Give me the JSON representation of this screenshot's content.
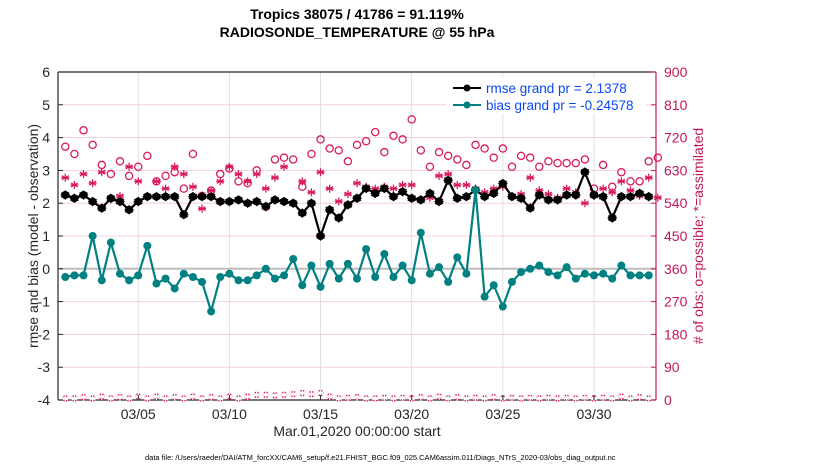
{
  "chart_data": {
    "type": "line",
    "title": [
      "Tropics 38075 / 41786 = 91.119%",
      "RADIOSONDE_TEMPERATURE @ 55 hPa"
    ],
    "xlabel": "Mar.01,2020 00:00:00 start",
    "ylabel": "rmse and bias (model - observation)",
    "y2label": "# of obs: o=possible; *=assimilated",
    "xlim_days": [
      -0.4,
      32.4
    ],
    "ylim": [
      -4,
      6
    ],
    "y2lim": [
      0,
      900
    ],
    "grid": true,
    "legend_position": "top-right",
    "xticks": [
      {
        "day": 4,
        "label": "03/05"
      },
      {
        "day": 9,
        "label": "03/10"
      },
      {
        "day": 14,
        "label": "03/15"
      },
      {
        "day": 19,
        "label": "03/20"
      },
      {
        "day": 24,
        "label": "03/25"
      },
      {
        "day": 29,
        "label": "03/30"
      }
    ],
    "yticks": [
      -4,
      -3,
      -2,
      -1,
      0,
      1,
      2,
      3,
      4,
      5,
      6
    ],
    "y2ticks": [
      0,
      90,
      180,
      270,
      360,
      450,
      540,
      630,
      720,
      810,
      900
    ],
    "x_start_day": -0.5,
    "x_step_days": 0.5,
    "series": [
      {
        "name": "rmse grand pr = 2.1378",
        "color": "#000000",
        "axis": "left",
        "marker": "filled-circle",
        "values": [
          2.25,
          2.25,
          2.15,
          2.25,
          2.05,
          1.85,
          2.15,
          2.05,
          1.8,
          2.05,
          2.2,
          2.2,
          2.2,
          2.2,
          1.65,
          2.2,
          2.2,
          2.2,
          2.05,
          2.05,
          2.1,
          2.0,
          2.05,
          1.9,
          2.1,
          2.05,
          2.0,
          1.7,
          2.0,
          1.0,
          1.8,
          1.55,
          1.95,
          2.15,
          2.45,
          2.3,
          2.45,
          2.2,
          2.35,
          2.15,
          2.1,
          2.3,
          2.05,
          2.7,
          2.15,
          2.2,
          2.4,
          2.2,
          2.3,
          2.6,
          2.2,
          2.15,
          1.85,
          2.25,
          2.1,
          2.1,
          2.25,
          2.25,
          2.95,
          2.25,
          2.2,
          1.55,
          2.2,
          2.2,
          2.3,
          2.2,
          2.05
        ]
      },
      {
        "name": "bias grand pr = -0.24578",
        "color": "#008080",
        "axis": "left",
        "marker": "filled-circle",
        "values": [
          -0.25,
          -0.25,
          -0.2,
          -0.2,
          1.0,
          -0.35,
          0.8,
          -0.15,
          -0.35,
          -0.2,
          0.7,
          -0.45,
          -0.3,
          -0.6,
          -0.15,
          -0.25,
          -0.4,
          -1.3,
          -0.25,
          -0.15,
          -0.35,
          -0.35,
          -0.2,
          0.0,
          -0.3,
          -0.2,
          0.3,
          -0.5,
          0.1,
          -0.55,
          0.15,
          -0.3,
          0.15,
          -0.3,
          0.6,
          -0.25,
          0.45,
          -0.25,
          0.1,
          -0.35,
          1.1,
          -0.15,
          0.05,
          -0.4,
          0.35,
          -0.15,
          2.4,
          -0.85,
          -0.5,
          -1.15,
          -0.4,
          -0.1,
          0.0,
          0.1,
          -0.1,
          -0.2,
          0.05,
          -0.3,
          -0.15,
          -0.2,
          -0.15,
          -0.3,
          0.1,
          -0.2,
          -0.2,
          -0.2,
          -0.3
        ]
      },
      {
        "name": "possible obs",
        "color": "#d81b60",
        "axis": "right",
        "marker": "open-circle",
        "values": [
          585,
          695,
          675,
          740,
          700,
          645,
          620,
          655,
          615,
          640,
          670,
          600,
          615,
          625,
          580,
          675,
          560,
          575,
          620,
          635,
          600,
          595,
          630,
          530,
          660,
          665,
          660,
          585,
          675,
          715,
          690,
          685,
          655,
          700,
          710,
          735,
          680,
          725,
          715,
          770,
          685,
          640,
          680,
          670,
          660,
          645,
          700,
          690,
          665,
          690,
          640,
          670,
          665,
          640,
          655,
          650,
          650,
          650,
          660,
          580,
          645,
          585,
          625,
          600,
          600,
          655,
          665,
          695,
          640,
          650,
          645,
          660,
          700,
          690
        ]
      },
      {
        "name": "assimilated obs",
        "color": "#d81b60",
        "axis": "right",
        "marker": "asterisk",
        "values": [
          530,
          610,
          590,
          620,
          595,
          625,
          550,
          560,
          640,
          600,
          560,
          600,
          580,
          640,
          620,
          585,
          525,
          575,
          600,
          640,
          620,
          600,
          620,
          580,
          610,
          640,
          540,
          600,
          570,
          625,
          580,
          545,
          565,
          595,
          585,
          580,
          585,
          580,
          590,
          590,
          550,
          555,
          615,
          620,
          590,
          590,
          580,
          570,
          580,
          585,
          560,
          565,
          610,
          575,
          565,
          555,
          580,
          570,
          540,
          560,
          580,
          570,
          600,
          575,
          560,
          610,
          555,
          560,
          560,
          600,
          565
        ]
      },
      {
        "name": "assimilated count (bottom)",
        "color": "#d81b60",
        "axis": "right",
        "marker": "circle-asterisk",
        "values": [
          2,
          2,
          2,
          6,
          2,
          8,
          2,
          6,
          2,
          8,
          2,
          8,
          2,
          6,
          2,
          8,
          2,
          6,
          2,
          8,
          2,
          8,
          14,
          14,
          12,
          14,
          16,
          20,
          16,
          20,
          8,
          2,
          4,
          6,
          2,
          2,
          4,
          2,
          4,
          2,
          6,
          2,
          8,
          2,
          6,
          2,
          4,
          2,
          6,
          2,
          4,
          2,
          4,
          2,
          4,
          2,
          4,
          2,
          4,
          2,
          4,
          2,
          8,
          2,
          6,
          2
        ]
      }
    ]
  },
  "footer": "data file: /Users/raeder/DAI/ATM_forcXX/CAM6_setup/f.e21.FHIST_BGC.f09_025.CAM6assim.011/Diags_NTrS_2020-03/obs_diag_output.nc"
}
